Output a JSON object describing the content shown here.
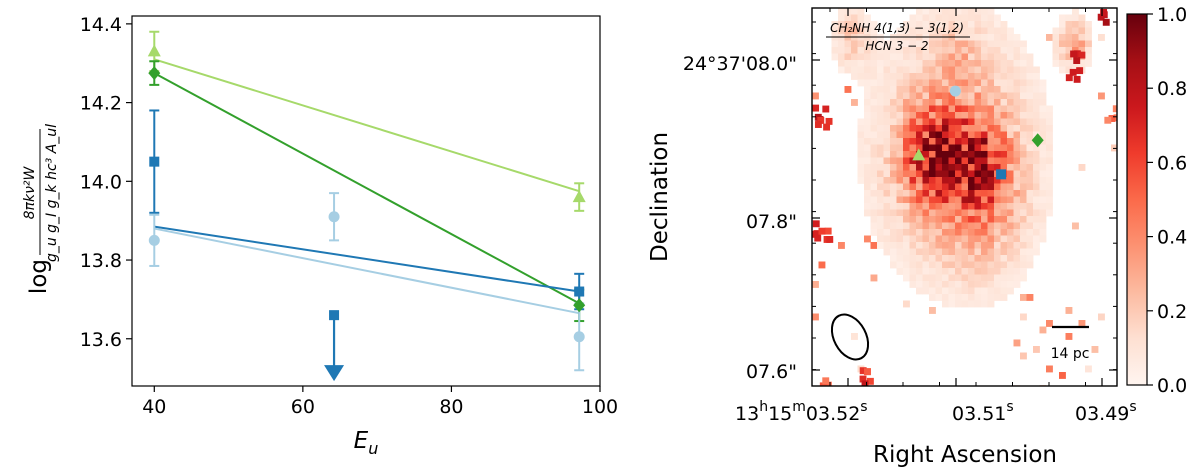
{
  "chart_data": [
    {
      "type": "scatter",
      "xlabel": "E",
      "xlabel_sub": "u",
      "ylabel_prefix": "log",
      "ylabel_numerator": "8πkν²W",
      "ylabel_denominator": "g_u g_I g_k hc³ A_ul",
      "xlim": [
        37,
        100
      ],
      "ylim": [
        13.48,
        14.42
      ],
      "xticks": [
        40,
        60,
        80,
        100
      ],
      "yticks": [
        13.6,
        13.8,
        14.0,
        14.2,
        14.4
      ],
      "xtick_labels": [
        "40",
        "60",
        "80",
        "100"
      ],
      "ytick_labels": [
        "13.6",
        "13.8",
        "14.0",
        "14.2",
        "14.4"
      ],
      "series": [
        {
          "name": "light-green-triangles",
          "color": "#a6d96a",
          "marker": "triangle",
          "points": [
            {
              "x": 40,
              "y": 14.33,
              "err": 0.05
            },
            {
              "x": 97.2,
              "y": 13.96,
              "err": 0.035
            }
          ],
          "fit": [
            [
              40,
              14.31
            ],
            [
              97.2,
              13.975
            ]
          ]
        },
        {
          "name": "green-diamonds",
          "color": "#33a02c",
          "marker": "diamond",
          "points": [
            {
              "x": 40,
              "y": 14.275,
              "err": 0.03
            },
            {
              "x": 97.2,
              "y": 13.685,
              "err": 0.04
            }
          ],
          "fit": [
            [
              40,
              14.275
            ],
            [
              97.2,
              13.69
            ]
          ]
        },
        {
          "name": "blue-squares",
          "color": "#1f78b4",
          "marker": "square",
          "points": [
            {
              "x": 40,
              "y": 14.05,
              "err": 0.13
            },
            {
              "x": 97.2,
              "y": 13.72,
              "err": 0.045
            }
          ],
          "upper_limits": [
            {
              "x": 64.2,
              "y": 13.66
            }
          ],
          "fit": [
            [
              40,
              13.885
            ],
            [
              97.2,
              13.72
            ]
          ]
        },
        {
          "name": "light-blue-circles",
          "color": "#a6cee3",
          "marker": "circle",
          "points": [
            {
              "x": 40,
              "y": 13.85,
              "err": 0.065
            },
            {
              "x": 64.2,
              "y": 13.91,
              "err": 0.06
            },
            {
              "x": 97.2,
              "y": 13.605,
              "err": 0.085
            }
          ],
          "fit": [
            [
              40,
              13.88
            ],
            [
              97.2,
              13.665
            ]
          ]
        }
      ]
    },
    {
      "type": "heatmap",
      "title_numerator": "CH₂NH 4(1,3) − 3(1,2)",
      "title_denominator": "HCN 3 − 2",
      "xlabel": "Right Ascension",
      "ylabel": "Declination",
      "ytick_labels": [
        "24°37'08.0\"",
        "07.8\"",
        "07.6\""
      ],
      "xtick_labels": [
        {
          "main": "13",
          "sup1": "h",
          "mid": "15",
          "sup2": "m",
          "end": "03.52",
          "sup3": "s"
        },
        {
          "main": "03.51",
          "sup": "s"
        },
        {
          "main": "03.49",
          "sup": "s"
        }
      ],
      "colorbar": {
        "cmap": "Reds",
        "range": [
          0.0,
          1.0
        ],
        "ticks": [
          0.0,
          0.2,
          0.4,
          0.6,
          0.8,
          1.0
        ],
        "tick_labels": [
          "0.0",
          "0.2",
          "0.4",
          "0.6",
          "0.8",
          "1.0"
        ]
      },
      "scalebar_label": "14 pc",
      "markers": [
        {
          "name": "light-blue-circle",
          "shape": "circle",
          "color": "#a6cee3",
          "ra_frac": 0.47,
          "dec_frac": 0.22
        },
        {
          "name": "green-diamond",
          "shape": "diamond",
          "color": "#33a02c",
          "ra_frac": 0.74,
          "dec_frac": 0.35
        },
        {
          "name": "light-green-triangle",
          "shape": "triangle",
          "color": "#a6d96a",
          "ra_frac": 0.35,
          "dec_frac": 0.39
        },
        {
          "name": "blue-square",
          "shape": "square",
          "color": "#1f78b4",
          "ra_frac": 0.62,
          "dec_frac": 0.44
        }
      ],
      "blobs": [
        {
          "cx": 0.47,
          "cy": 0.37,
          "r": 0.25,
          "v": 0.3
        },
        {
          "cx": 0.4,
          "cy": 0.39,
          "r": 0.1,
          "v": 0.55
        },
        {
          "cx": 0.55,
          "cy": 0.4,
          "r": 0.09,
          "v": 0.45
        },
        {
          "cx": 0.56,
          "cy": 0.53,
          "r": 0.13,
          "v": 0.15
        },
        {
          "cx": 0.48,
          "cy": 0.13,
          "r": 0.06,
          "v": 0.12
        },
        {
          "cx": 0.13,
          "cy": 0.08,
          "r": 0.06,
          "v": 0.18
        },
        {
          "cx": 0.86,
          "cy": 0.09,
          "r": 0.05,
          "v": 0.3
        }
      ]
    }
  ]
}
